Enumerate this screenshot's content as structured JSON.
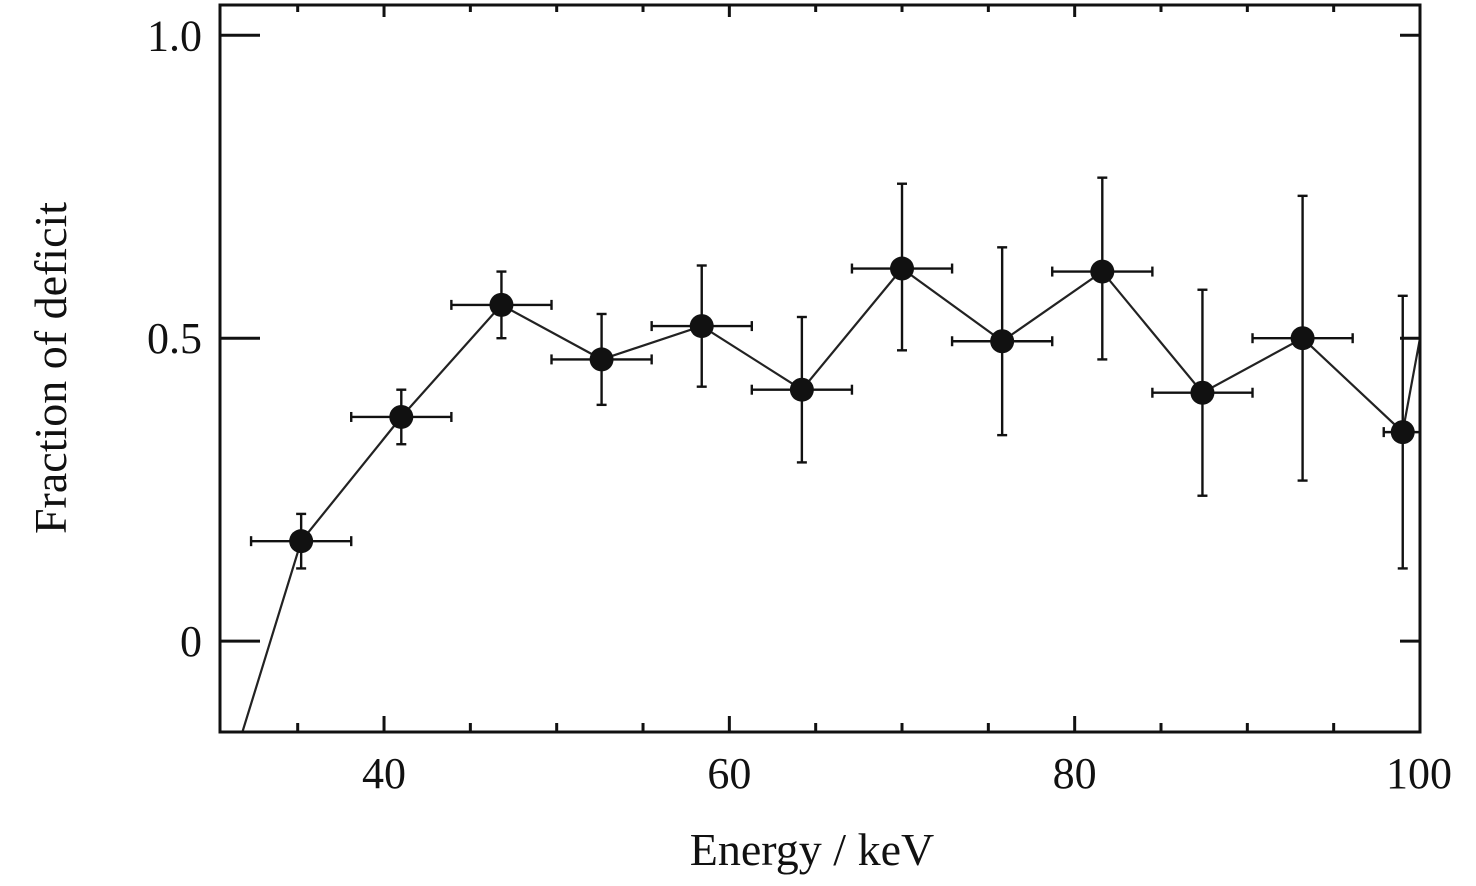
{
  "chart_data": {
    "type": "scatter",
    "xlabel": "Energy / keV",
    "ylabel": "Fraction of deficit",
    "xlim": [
      30.5,
      100
    ],
    "ylim": [
      -0.15,
      1.05
    ],
    "x_ticks": [
      40,
      60,
      80,
      100
    ],
    "x_tick_labels": [
      "40",
      "60",
      "80",
      "100"
    ],
    "x_minor_ticks": [
      35,
      45,
      50,
      55,
      65,
      70,
      75,
      85,
      90,
      95
    ],
    "y_ticks": [
      0,
      0.5,
      1.0
    ],
    "y_tick_labels": [
      "0",
      "0.5",
      "1.0"
    ],
    "grid": false,
    "legend": "none",
    "series": [
      {
        "color": "#111111",
        "x": [
          35.2,
          41.0,
          46.8,
          52.6,
          58.4,
          64.2,
          70.0,
          75.8,
          81.6,
          87.4,
          93.2,
          99.0
        ],
        "y": [
          0.165,
          0.37,
          0.555,
          0.465,
          0.52,
          0.415,
          0.615,
          0.495,
          0.61,
          0.41,
          0.5,
          0.345
        ],
        "x_err": [
          2.9,
          2.9,
          2.9,
          2.9,
          2.9,
          2.9,
          2.9,
          2.9,
          2.9,
          2.9,
          2.9,
          1.1
        ],
        "y_err_low": [
          0.045,
          0.045,
          0.055,
          0.075,
          0.1,
          0.12,
          0.135,
          0.155,
          0.145,
          0.17,
          0.235,
          0.225
        ],
        "y_err_high": [
          0.045,
          0.045,
          0.055,
          0.075,
          0.1,
          0.12,
          0.14,
          0.155,
          0.155,
          0.17,
          0.235,
          0.225
        ]
      }
    ],
    "line_start": [
      31.8,
      -0.15
    ],
    "line_end": [
      100,
      0.5
    ]
  }
}
